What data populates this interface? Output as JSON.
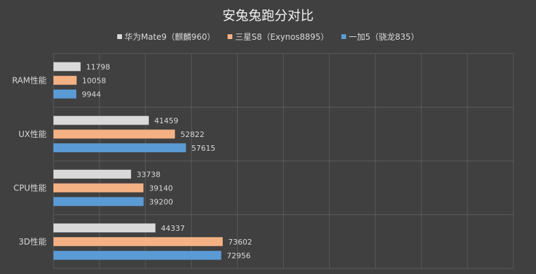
{
  "chart_data": {
    "type": "bar",
    "orientation": "horizontal",
    "title": "安兔兔跑分对比",
    "categories": [
      "RAM性能",
      "UX性能",
      "CPU性能",
      "3D性能"
    ],
    "series": [
      {
        "name": "华为Mate9（麒麟960）",
        "color": "#d9d9d9",
        "values": [
          11798,
          41459,
          33738,
          44337
        ]
      },
      {
        "name": "三星S8（Exynos8895）",
        "color": "#f4b183",
        "values": [
          10058,
          52822,
          39140,
          73602
        ]
      },
      {
        "name": "一加5（骁龙835）",
        "color": "#5b9bd5",
        "values": [
          9944,
          57615,
          39200,
          72956
        ]
      }
    ],
    "xlim": [
      0,
      200000
    ],
    "grid": true,
    "legend_position": "top",
    "data_labels": true
  }
}
